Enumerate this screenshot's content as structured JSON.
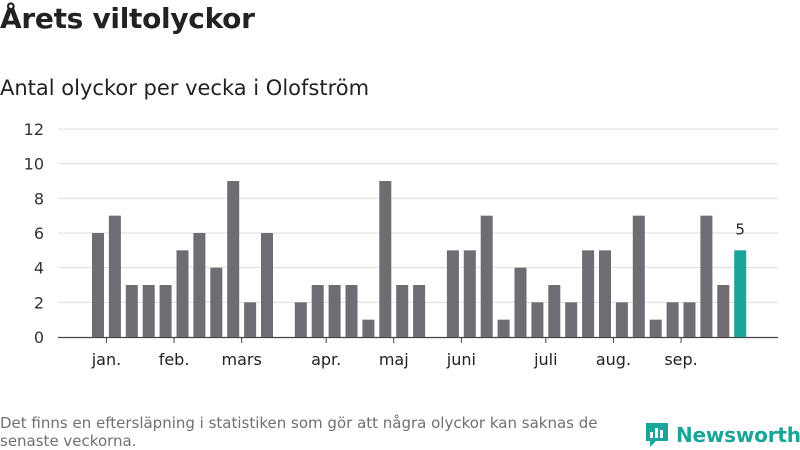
{
  "header": {
    "title": "Årets viltolyckor",
    "subtitle": "Antal olyckor per vecka i Olofström"
  },
  "footer": {
    "note": "Det finns en eftersläpning i statistiken som gör att några olyckor kan saknas de senaste veckorna.",
    "brand": "Newsworthy"
  },
  "colors": {
    "bar": "#6e6d73",
    "highlight": "#1aa59a",
    "grid": "#dddddd",
    "axis": "#444444"
  },
  "chart_data": {
    "type": "bar",
    "title": "Antal olyckor per vecka i Olofström",
    "xlabel": "",
    "ylabel": "",
    "ylim": [
      0,
      12
    ],
    "yticks": [
      0,
      2,
      4,
      6,
      8,
      10,
      12
    ],
    "weeks": [
      1,
      2,
      3,
      4,
      5,
      6,
      7,
      8,
      9,
      10,
      11,
      12,
      13,
      14,
      15,
      16,
      17,
      18,
      19,
      20,
      21,
      22,
      23,
      24,
      25,
      26,
      27,
      28,
      29,
      30,
      31,
      32,
      33,
      34,
      35,
      36,
      37,
      38,
      39
    ],
    "values": [
      6,
      7,
      3,
      3,
      3,
      5,
      6,
      4,
      9,
      2,
      6,
      0,
      2,
      3,
      3,
      3,
      1,
      9,
      3,
      3,
      0,
      5,
      5,
      7,
      1,
      4,
      2,
      3,
      2,
      5,
      5,
      2,
      7,
      1,
      2,
      2,
      7,
      3,
      5
    ],
    "highlight_index": 38,
    "highlight_label": "5",
    "month_labels": [
      {
        "label": "jan.",
        "week": 1.5
      },
      {
        "label": "feb.",
        "week": 5.5
      },
      {
        "label": "mars",
        "week": 9.5
      },
      {
        "label": "apr.",
        "week": 14.5
      },
      {
        "label": "maj",
        "week": 18.5
      },
      {
        "label": "juni",
        "week": 22.5
      },
      {
        "label": "juli",
        "week": 27.5
      },
      {
        "label": "aug.",
        "week": 31.5
      },
      {
        "label": "sep.",
        "week": 35.5
      }
    ]
  }
}
